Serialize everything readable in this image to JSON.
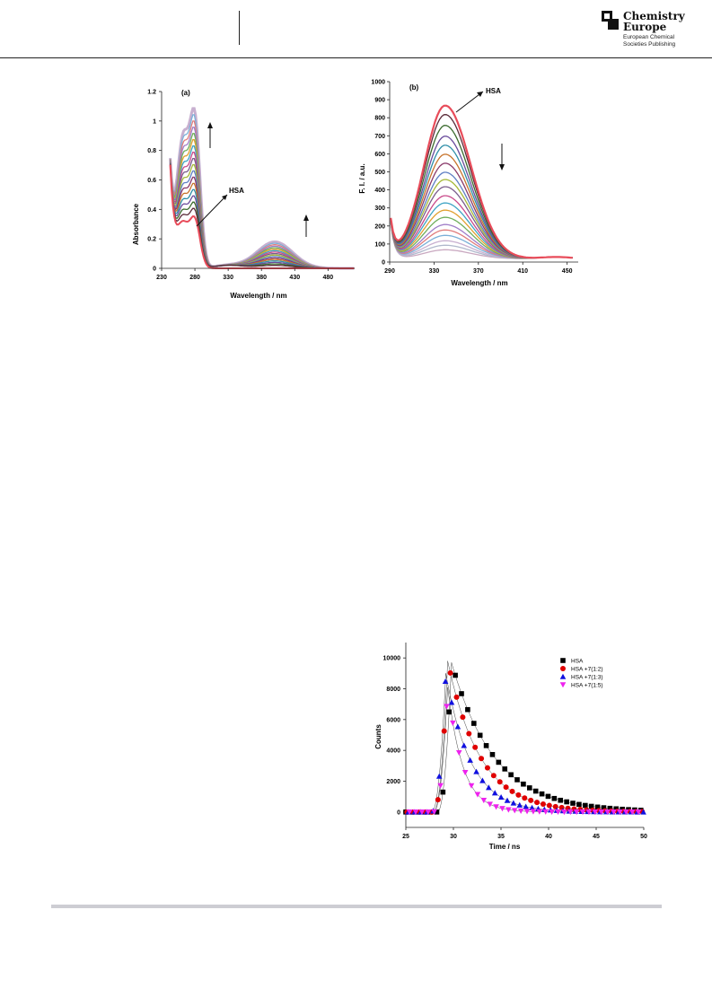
{
  "header": {
    "brand_line1": "Chemistry",
    "brand_line2": "Europe",
    "brand_sub1": "European Chemical",
    "brand_sub2": "Societies Publishing"
  },
  "figures": {
    "uv": {
      "panel_label": "(a)",
      "annotation": "HSA",
      "xlabel": "Wavelength / nm",
      "ylabel": "Absorbance"
    },
    "fl": {
      "panel_label": "(b)",
      "annotation": "HSA",
      "xlabel": "Wavelength / nm",
      "ylabel": "F. I. / a.u."
    },
    "decay": {
      "xlabel": "Time / ns",
      "ylabel": "Counts"
    }
  },
  "chart_data": [
    {
      "type": "line",
      "title": "(a)",
      "xlabel": "Wavelength / nm",
      "ylabel": "Absorbance",
      "xlim": [
        230,
        520
      ],
      "ylim": [
        0,
        1.2
      ],
      "xticks": [
        230,
        280,
        330,
        380,
        430,
        480
      ],
      "yticks": [
        0,
        0.2,
        0.4,
        0.6,
        0.8,
        1,
        1.2
      ],
      "annotations": [
        "HSA"
      ],
      "series": [
        {
          "peak_280": 0.33,
          "peak_400": 0.0
        },
        {
          "peak_280": 0.38,
          "peak_400": 0.02
        },
        {
          "peak_280": 0.42,
          "peak_400": 0.03
        },
        {
          "peak_280": 0.46,
          "peak_400": 0.04
        },
        {
          "peak_280": 0.5,
          "peak_400": 0.05
        },
        {
          "peak_280": 0.54,
          "peak_400": 0.06
        },
        {
          "peak_280": 0.58,
          "peak_400": 0.07
        },
        {
          "peak_280": 0.62,
          "peak_400": 0.08
        },
        {
          "peak_280": 0.66,
          "peak_400": 0.09
        },
        {
          "peak_280": 0.7,
          "peak_400": 0.1
        },
        {
          "peak_280": 0.74,
          "peak_400": 0.11
        },
        {
          "peak_280": 0.78,
          "peak_400": 0.12
        },
        {
          "peak_280": 0.82,
          "peak_400": 0.13
        },
        {
          "peak_280": 0.86,
          "peak_400": 0.14
        },
        {
          "peak_280": 0.9,
          "peak_400": 0.15
        },
        {
          "peak_280": 0.94,
          "peak_400": 0.16
        },
        {
          "peak_280": 0.98,
          "peak_400": 0.17
        },
        {
          "peak_280": 1.02,
          "peak_400": 0.18
        }
      ]
    },
    {
      "type": "line",
      "title": "(b)",
      "xlabel": "Wavelength / nm",
      "ylabel": "F. I. / a.u.",
      "xlim": [
        290,
        460
      ],
      "ylim": [
        0,
        1000
      ],
      "xticks": [
        290,
        330,
        370,
        410,
        450
      ],
      "yticks": [
        0,
        100,
        200,
        300,
        400,
        500,
        600,
        700,
        800,
        900,
        1000
      ],
      "annotations": [
        "HSA"
      ],
      "series": [
        {
          "peak": 850
        },
        {
          "peak": 800
        },
        {
          "peak": 740
        },
        {
          "peak": 680
        },
        {
          "peak": 630
        },
        {
          "peak": 580
        },
        {
          "peak": 530
        },
        {
          "peak": 480
        },
        {
          "peak": 440
        },
        {
          "peak": 400
        },
        {
          "peak": 350
        },
        {
          "peak": 310
        },
        {
          "peak": 270
        },
        {
          "peak": 230
        },
        {
          "peak": 190
        },
        {
          "peak": 160
        },
        {
          "peak": 130
        },
        {
          "peak": 100
        },
        {
          "peak": 75
        },
        {
          "peak": 50
        }
      ]
    },
    {
      "type": "scatter",
      "xlabel": "Time / ns",
      "ylabel": "Counts",
      "xlim": [
        25,
        50
      ],
      "ylim": [
        -1000,
        11000
      ],
      "xticks": [
        25,
        30,
        35,
        40,
        45,
        50
      ],
      "yticks": [
        0,
        2000,
        4000,
        6000,
        8000,
        10000
      ],
      "legend_position": "top-right",
      "series": [
        {
          "name": "HSA",
          "marker": "square",
          "color": "#000000",
          "peak_x": 29.8,
          "peak": 9700,
          "tau": 4.5
        },
        {
          "name": "HSA +7(1:2)",
          "marker": "circle",
          "color": "#e00000",
          "peak_x": 29.4,
          "peak": 9800,
          "tau": 3.4
        },
        {
          "name": "HSA +7(1:3)",
          "marker": "triangle-up",
          "color": "#1010e0",
          "peak_x": 29.2,
          "peak": 9000,
          "tau": 2.6
        },
        {
          "name": "HSA +7(1:5)",
          "marker": "triangle-down",
          "color": "#ee22ee",
          "peak_x": 29.4,
          "peak": 8100,
          "tau": 1.6
        }
      ]
    }
  ]
}
